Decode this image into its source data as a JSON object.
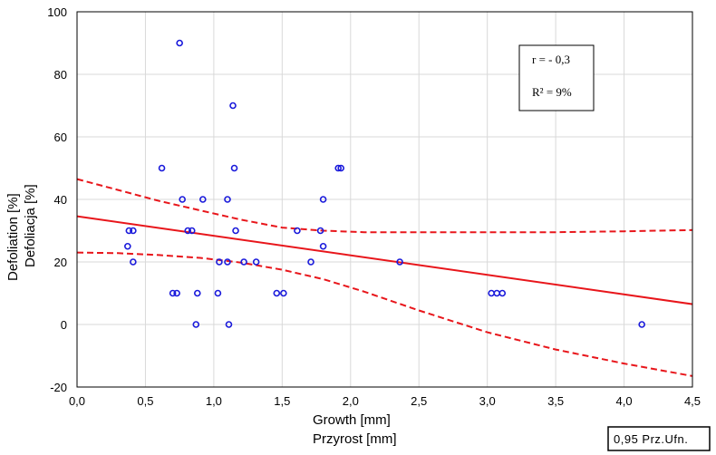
{
  "chart_data": {
    "type": "scatter",
    "xlabel": [
      "Growth [mm]",
      "Przyrost [mm]"
    ],
    "ylabel": [
      "Defoliation [%]",
      "Defoliacja [%]"
    ],
    "xlim": [
      0,
      4.5
    ],
    "ylim": [
      -20,
      100
    ],
    "xticks": [
      0,
      0.5,
      1,
      1.5,
      2,
      2.5,
      3,
      3.5,
      4,
      4.5
    ],
    "xtick_labels": [
      "0,0",
      "0,5",
      "1,0",
      "1,5",
      "2,0",
      "2,5",
      "3,0",
      "3,5",
      "4,0",
      "4,5"
    ],
    "yticks": [
      -20,
      0,
      20,
      40,
      60,
      80,
      100
    ],
    "ytick_labels": [
      "-20",
      "0",
      "20",
      "40",
      "60",
      "80",
      "100"
    ],
    "grid": true,
    "points_color": "#1a1adb",
    "line_color": "#e8161b",
    "points": [
      {
        "x": 0.75,
        "y": 90
      },
      {
        "x": 1.14,
        "y": 70
      },
      {
        "x": 0.62,
        "y": 50
      },
      {
        "x": 1.15,
        "y": 50
      },
      {
        "x": 1.91,
        "y": 50
      },
      {
        "x": 1.93,
        "y": 50
      },
      {
        "x": 0.77,
        "y": 40
      },
      {
        "x": 0.92,
        "y": 40
      },
      {
        "x": 1.1,
        "y": 40
      },
      {
        "x": 1.8,
        "y": 40
      },
      {
        "x": 0.38,
        "y": 30
      },
      {
        "x": 0.41,
        "y": 30
      },
      {
        "x": 0.81,
        "y": 30
      },
      {
        "x": 0.84,
        "y": 30
      },
      {
        "x": 1.16,
        "y": 30
      },
      {
        "x": 1.61,
        "y": 30
      },
      {
        "x": 1.78,
        "y": 30
      },
      {
        "x": 0.37,
        "y": 25
      },
      {
        "x": 1.8,
        "y": 25
      },
      {
        "x": 0.41,
        "y": 20
      },
      {
        "x": 1.04,
        "y": 20
      },
      {
        "x": 1.1,
        "y": 20
      },
      {
        "x": 1.22,
        "y": 20
      },
      {
        "x": 1.31,
        "y": 20
      },
      {
        "x": 1.71,
        "y": 20
      },
      {
        "x": 2.36,
        "y": 20
      },
      {
        "x": 0.7,
        "y": 10
      },
      {
        "x": 0.73,
        "y": 10
      },
      {
        "x": 0.88,
        "y": 10
      },
      {
        "x": 1.03,
        "y": 10
      },
      {
        "x": 1.46,
        "y": 10
      },
      {
        "x": 1.51,
        "y": 10
      },
      {
        "x": 3.03,
        "y": 10
      },
      {
        "x": 3.07,
        "y": 10
      },
      {
        "x": 3.11,
        "y": 10
      },
      {
        "x": 0.87,
        "y": 0
      },
      {
        "x": 1.11,
        "y": 0
      },
      {
        "x": 4.13,
        "y": 0
      }
    ],
    "regression": {
      "x": [
        0,
        4.5
      ],
      "y": [
        34.6,
        6.5
      ]
    },
    "confidence_upper": {
      "x": [
        0,
        0.3,
        0.6,
        0.9,
        1.2,
        1.5,
        1.8,
        2.1,
        2.5,
        3.0,
        3.5,
        4.0,
        4.5
      ],
      "y": [
        46.5,
        43,
        39.5,
        36.5,
        33.5,
        31,
        30,
        29.5,
        29.5,
        29.5,
        29.5,
        29.8,
        30.2
      ]
    },
    "confidence_lower": {
      "x": [
        0,
        0.3,
        0.6,
        0.9,
        1.2,
        1.5,
        1.8,
        2.1,
        2.5,
        3.0,
        3.5,
        4.0,
        4.5
      ],
      "y": [
        23,
        22.8,
        22.2,
        21.3,
        19.8,
        17.5,
        14.5,
        10.5,
        4.5,
        -2.5,
        -8,
        -12.5,
        -16.5
      ]
    },
    "stats": {
      "r": "r = - 0,3",
      "r2": "R² = 9%"
    },
    "legend_label": "0,95 Prz.Ufn."
  }
}
